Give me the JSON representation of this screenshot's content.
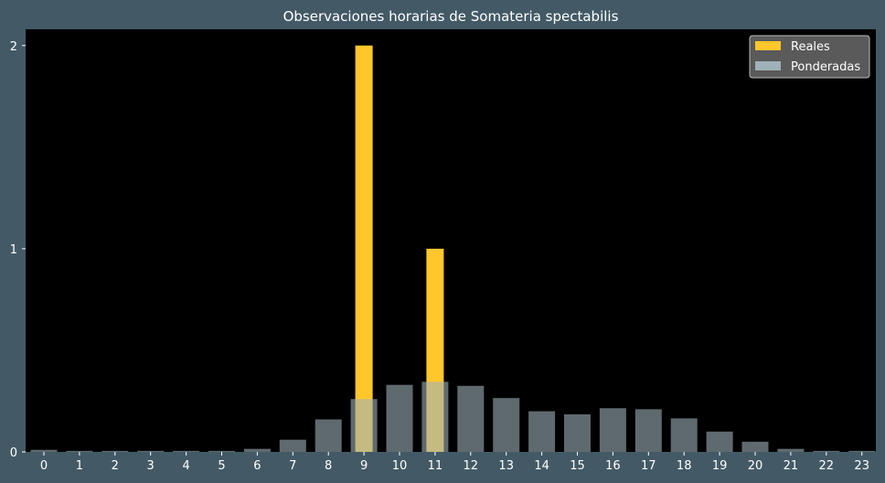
{
  "colors": {
    "figure_bg": "#435a66",
    "plot_bg": "#000000",
    "text": "#ffffff",
    "reales": "#ffc72c",
    "ponderadas": "#9fb1b9",
    "legend_bg": "#5a5a5a",
    "legend_border": "#bbbbbb"
  },
  "chart_data": {
    "type": "bar",
    "title": "Observaciones horarias de Somateria spectabilis",
    "xlabel": "",
    "ylabel": "",
    "categories": [
      "0",
      "1",
      "2",
      "3",
      "4",
      "5",
      "6",
      "7",
      "8",
      "9",
      "10",
      "11",
      "12",
      "13",
      "14",
      "15",
      "16",
      "17",
      "18",
      "19",
      "20",
      "21",
      "22",
      "23"
    ],
    "ylim": [
      0,
      2.08
    ],
    "yticks": [
      "0",
      "1",
      "2"
    ],
    "legend_position": "top-right",
    "grid": false,
    "series": [
      {
        "name": "Reales",
        "values": [
          0,
          0,
          0,
          0,
          0,
          0,
          0,
          0,
          0,
          2,
          0,
          1,
          0,
          0,
          0,
          0,
          0,
          0,
          0,
          0,
          0,
          0,
          0,
          0
        ]
      },
      {
        "name": "Ponderadas",
        "values": [
          0.01,
          0.005,
          0.005,
          0.005,
          0.005,
          0.005,
          0.015,
          0.06,
          0.16,
          0.26,
          0.33,
          0.345,
          0.325,
          0.265,
          0.2,
          0.185,
          0.215,
          0.21,
          0.165,
          0.1,
          0.05,
          0.015,
          0.005,
          0.005
        ]
      }
    ]
  }
}
